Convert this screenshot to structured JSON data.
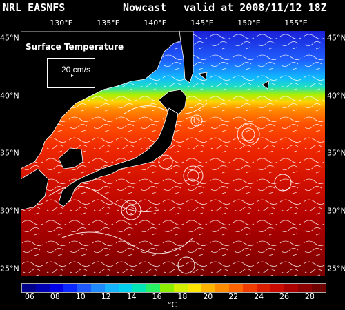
{
  "header": {
    "org": "NRL EASNFS",
    "mode": "Nowcast",
    "valid": "valid at 2008/11/12 18Z"
  },
  "map": {
    "title": "Surface Temperature",
    "vector_scale_label": "20 cm/s",
    "lon_labels": [
      "130°E",
      "135°E",
      "140°E",
      "145°E",
      "150°E",
      "155°E"
    ],
    "lat_labels_left": [
      "45°N",
      "40°N",
      "35°N",
      "30°N",
      "25°N"
    ],
    "lat_labels_right": [
      "45°N",
      "40°N",
      "35°N",
      "30°N",
      "25°N"
    ]
  },
  "colorbar": {
    "ticks": [
      "06",
      "08",
      "10",
      "12",
      "14",
      "16",
      "18",
      "20",
      "22",
      "24",
      "26",
      "28"
    ],
    "unit": "°C",
    "colors": [
      "#00008a",
      "#0000b4",
      "#0000e6",
      "#0a28ff",
      "#1e5aff",
      "#1e8cff",
      "#14b4ff",
      "#00d2f0",
      "#00e6b4",
      "#28f064",
      "#8cf000",
      "#d2f000",
      "#ffe600",
      "#ffb400",
      "#ff8c00",
      "#ff6400",
      "#f03c00",
      "#dc1e00",
      "#c80a00",
      "#aa0000",
      "#8c0000",
      "#6e0000"
    ]
  }
}
